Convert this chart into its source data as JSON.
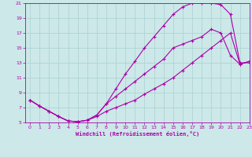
{
  "xlabel": "Windchill (Refroidissement éolien,°C)",
  "xlim": [
    -0.5,
    23
  ],
  "ylim": [
    5,
    21
  ],
  "xticks": [
    0,
    1,
    2,
    3,
    4,
    5,
    6,
    7,
    8,
    9,
    10,
    11,
    12,
    13,
    14,
    15,
    16,
    17,
    18,
    19,
    20,
    21,
    22,
    23
  ],
  "yticks": [
    5,
    7,
    9,
    11,
    13,
    15,
    17,
    19,
    21
  ],
  "background_color": "#cce8e8",
  "grid_color": "#aad0d0",
  "line_color": "#aa00aa",
  "line_width": 0.8,
  "marker": "+",
  "marker_size": 3.5,
  "series": [
    {
      "x": [
        0,
        1,
        2,
        3,
        4,
        5,
        6,
        7,
        8,
        9,
        10,
        11,
        12,
        13,
        14,
        15,
        16,
        17,
        18,
        19,
        20,
        21,
        22,
        23
      ],
      "y": [
        8.0,
        7.2,
        6.5,
        5.8,
        5.2,
        5.1,
        5.3,
        6.0,
        7.5,
        9.5,
        11.5,
        13.2,
        15.0,
        16.5,
        18.0,
        19.5,
        20.5,
        21.0,
        21.0,
        21.0,
        20.8,
        19.5,
        13.0,
        13.0
      ]
    },
    {
      "x": [
        0,
        1,
        2,
        3,
        4,
        5,
        6,
        7,
        8,
        9,
        10,
        11,
        12,
        13,
        14,
        15,
        16,
        17,
        18,
        19,
        20,
        21,
        22,
        23
      ],
      "y": [
        8.0,
        7.2,
        6.5,
        5.8,
        5.2,
        5.1,
        5.3,
        6.0,
        7.5,
        8.5,
        9.5,
        10.5,
        11.5,
        12.5,
        13.5,
        15.0,
        15.5,
        16.0,
        16.5,
        17.5,
        17.0,
        14.0,
        12.8,
        13.2
      ]
    },
    {
      "x": [
        0,
        1,
        2,
        3,
        4,
        5,
        6,
        7,
        8,
        9,
        10,
        11,
        12,
        13,
        14,
        15,
        16,
        17,
        18,
        19,
        20,
        21,
        22,
        23
      ],
      "y": [
        8.0,
        7.2,
        6.5,
        5.8,
        5.2,
        5.1,
        5.3,
        5.8,
        6.5,
        7.0,
        7.5,
        8.0,
        8.8,
        9.5,
        10.2,
        11.0,
        12.0,
        13.0,
        14.0,
        15.0,
        16.0,
        17.0,
        12.8,
        13.2
      ]
    }
  ]
}
